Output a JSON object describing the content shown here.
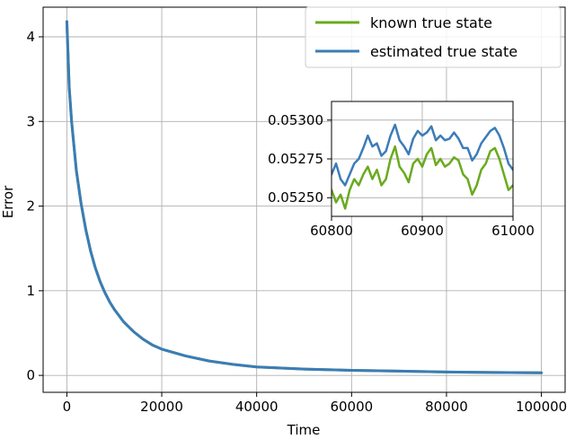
{
  "chart_data": [
    {
      "type": "line",
      "xlabel": "Time",
      "ylabel": "Error",
      "xlim": [
        -5000,
        105000
      ],
      "ylim": [
        -0.2,
        4.35
      ],
      "xticks": [
        0,
        20000,
        40000,
        60000,
        80000,
        100000
      ],
      "yticks": [
        0,
        1,
        2,
        3,
        4
      ],
      "xtick_labels": [
        "0",
        "20000",
        "40000",
        "60000",
        "80000",
        "100000"
      ],
      "ytick_labels": [
        "0",
        "1",
        "2",
        "3",
        "4"
      ],
      "grid": true,
      "legend_position": "top-right",
      "series": [
        {
          "name": "known true state",
          "color": "#6aaa1e",
          "x": [
            0,
            500,
            1000,
            2000,
            3000,
            4000,
            5000,
            6000,
            7000,
            8000,
            9000,
            10000,
            12000,
            14000,
            16000,
            18000,
            20000,
            25000,
            30000,
            35000,
            40000,
            50000,
            60000,
            70000,
            80000,
            90000,
            100000
          ],
          "values": [
            4.18,
            3.4,
            3.0,
            2.42,
            2.03,
            1.72,
            1.47,
            1.27,
            1.11,
            0.98,
            0.87,
            0.78,
            0.63,
            0.52,
            0.43,
            0.36,
            0.31,
            0.23,
            0.17,
            0.13,
            0.1,
            0.075,
            0.06,
            0.05,
            0.04,
            0.035,
            0.03
          ]
        },
        {
          "name": "estimated true state",
          "color": "#3b7cb8",
          "x": [
            0,
            500,
            1000,
            2000,
            3000,
            4000,
            5000,
            6000,
            7000,
            8000,
            9000,
            10000,
            12000,
            14000,
            16000,
            18000,
            20000,
            25000,
            30000,
            35000,
            40000,
            50000,
            60000,
            70000,
            80000,
            90000,
            100000
          ],
          "values": [
            4.18,
            3.4,
            3.0,
            2.42,
            2.03,
            1.72,
            1.47,
            1.27,
            1.11,
            0.98,
            0.87,
            0.78,
            0.63,
            0.52,
            0.43,
            0.36,
            0.31,
            0.23,
            0.17,
            0.13,
            0.1,
            0.075,
            0.06,
            0.05,
            0.04,
            0.035,
            0.03
          ]
        }
      ]
    },
    {
      "type": "line",
      "inset": true,
      "xlim": [
        60800,
        61000
      ],
      "ylim": [
        0.05238,
        0.05312
      ],
      "xticks": [
        60800,
        60900,
        61000
      ],
      "yticks": [
        0.0525,
        0.05275,
        0.053
      ],
      "xtick_labels": [
        "60800",
        "60900",
        "61000"
      ],
      "ytick_labels": [
        "0.05250",
        "0.05275",
        "0.05300"
      ],
      "grid": true,
      "series": [
        {
          "name": "known true state",
          "color": "#6aaa1e",
          "x": [
            60800,
            60805,
            60810,
            60815,
            60820,
            60825,
            60830,
            60835,
            60840,
            60845,
            60850,
            60855,
            60860,
            60865,
            60870,
            60875,
            60880,
            60885,
            60890,
            60895,
            60900,
            60905,
            60910,
            60915,
            60920,
            60925,
            60930,
            60935,
            60940,
            60945,
            60950,
            60955,
            60960,
            60965,
            60970,
            60975,
            60980,
            60985,
            60990,
            60995,
            61000
          ],
          "values": [
            0.05255,
            0.05247,
            0.05252,
            0.05243,
            0.05255,
            0.05262,
            0.05258,
            0.05265,
            0.0527,
            0.05262,
            0.05268,
            0.05258,
            0.05262,
            0.05275,
            0.05283,
            0.0527,
            0.05266,
            0.0526,
            0.05272,
            0.05275,
            0.0527,
            0.05278,
            0.05282,
            0.05271,
            0.05275,
            0.0527,
            0.05272,
            0.05276,
            0.05274,
            0.05265,
            0.05262,
            0.05252,
            0.05258,
            0.05268,
            0.05272,
            0.0528,
            0.05282,
            0.05275,
            0.05265,
            0.05255,
            0.05258
          ]
        },
        {
          "name": "estimated true state",
          "color": "#3b7cb8",
          "x": [
            60800,
            60805,
            60810,
            60815,
            60820,
            60825,
            60830,
            60835,
            60840,
            60845,
            60850,
            60855,
            60860,
            60865,
            60870,
            60875,
            60880,
            60885,
            60890,
            60895,
            60900,
            60905,
            60910,
            60915,
            60920,
            60925,
            60930,
            60935,
            60940,
            60945,
            60950,
            60955,
            60960,
            60965,
            60970,
            60975,
            60980,
            60985,
            60990,
            60995,
            61000
          ],
          "values": [
            0.05265,
            0.05272,
            0.05262,
            0.05258,
            0.05265,
            0.05272,
            0.05275,
            0.05282,
            0.0529,
            0.05283,
            0.05285,
            0.05277,
            0.0528,
            0.0529,
            0.05297,
            0.05287,
            0.05283,
            0.05278,
            0.05288,
            0.05293,
            0.0529,
            0.05292,
            0.05296,
            0.05287,
            0.0529,
            0.05287,
            0.05288,
            0.05292,
            0.05288,
            0.05282,
            0.05282,
            0.05274,
            0.05278,
            0.05285,
            0.05289,
            0.05293,
            0.05295,
            0.0529,
            0.05282,
            0.05272,
            0.05268
          ]
        }
      ]
    }
  ]
}
